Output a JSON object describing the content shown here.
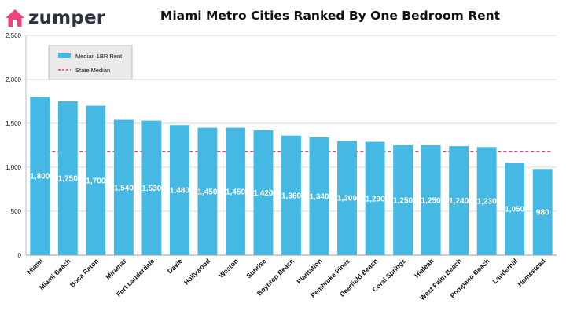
{
  "brand": {
    "name": "zumper",
    "logo_icon": "house-icon",
    "logo_color": "#f0437a"
  },
  "chart_data": {
    "type": "bar",
    "title": "Miami Metro Cities Ranked By One Bedroom Rent",
    "categories": [
      "Miami",
      "Miami Beach",
      "Boca Raton",
      "Miramar",
      "Fort Lauderdale",
      "Davie",
      "Hollywood",
      "Weston",
      "Sunrise",
      "Boynton Beach",
      "Plantation",
      "Pembroke Pines",
      "Deerfield Beach",
      "Coral Springs",
      "Hialeah",
      "West Palm Beach",
      "Pompano Beach",
      "Lauderhill",
      "Homestead"
    ],
    "series": [
      {
        "name": "Median 1BR Rent",
        "values": [
          1800,
          1750,
          1700,
          1540,
          1530,
          1480,
          1450,
          1450,
          1420,
          1360,
          1340,
          1300,
          1290,
          1250,
          1250,
          1240,
          1230,
          1050,
          980
        ],
        "data_labels": [
          "1,800",
          "1,750",
          "1,700",
          "1,540",
          "1,530",
          "1,480",
          "1,450",
          "1,450",
          "1,420",
          "1,360",
          "1,340",
          "1,300",
          "1,290",
          "1,250",
          "1,250",
          "1,240",
          "1,230",
          "1,050",
          "980"
        ],
        "color": "#45b9e3"
      }
    ],
    "reference_line": {
      "name": "State Median",
      "value": 1180,
      "color": "#c2185b",
      "style": "dashed"
    },
    "ylim": [
      0,
      2500
    ],
    "yticks": [
      0,
      500,
      1000,
      1500,
      2000,
      2500
    ],
    "ytick_labels": [
      "0",
      "500",
      "1,000",
      "1,500",
      "2,000",
      "2,500"
    ],
    "xlabel": "",
    "ylabel": "",
    "grid": true,
    "legend": {
      "placement": "top-left",
      "entries": [
        "Median 1BR Rent",
        "State Median"
      ]
    }
  }
}
